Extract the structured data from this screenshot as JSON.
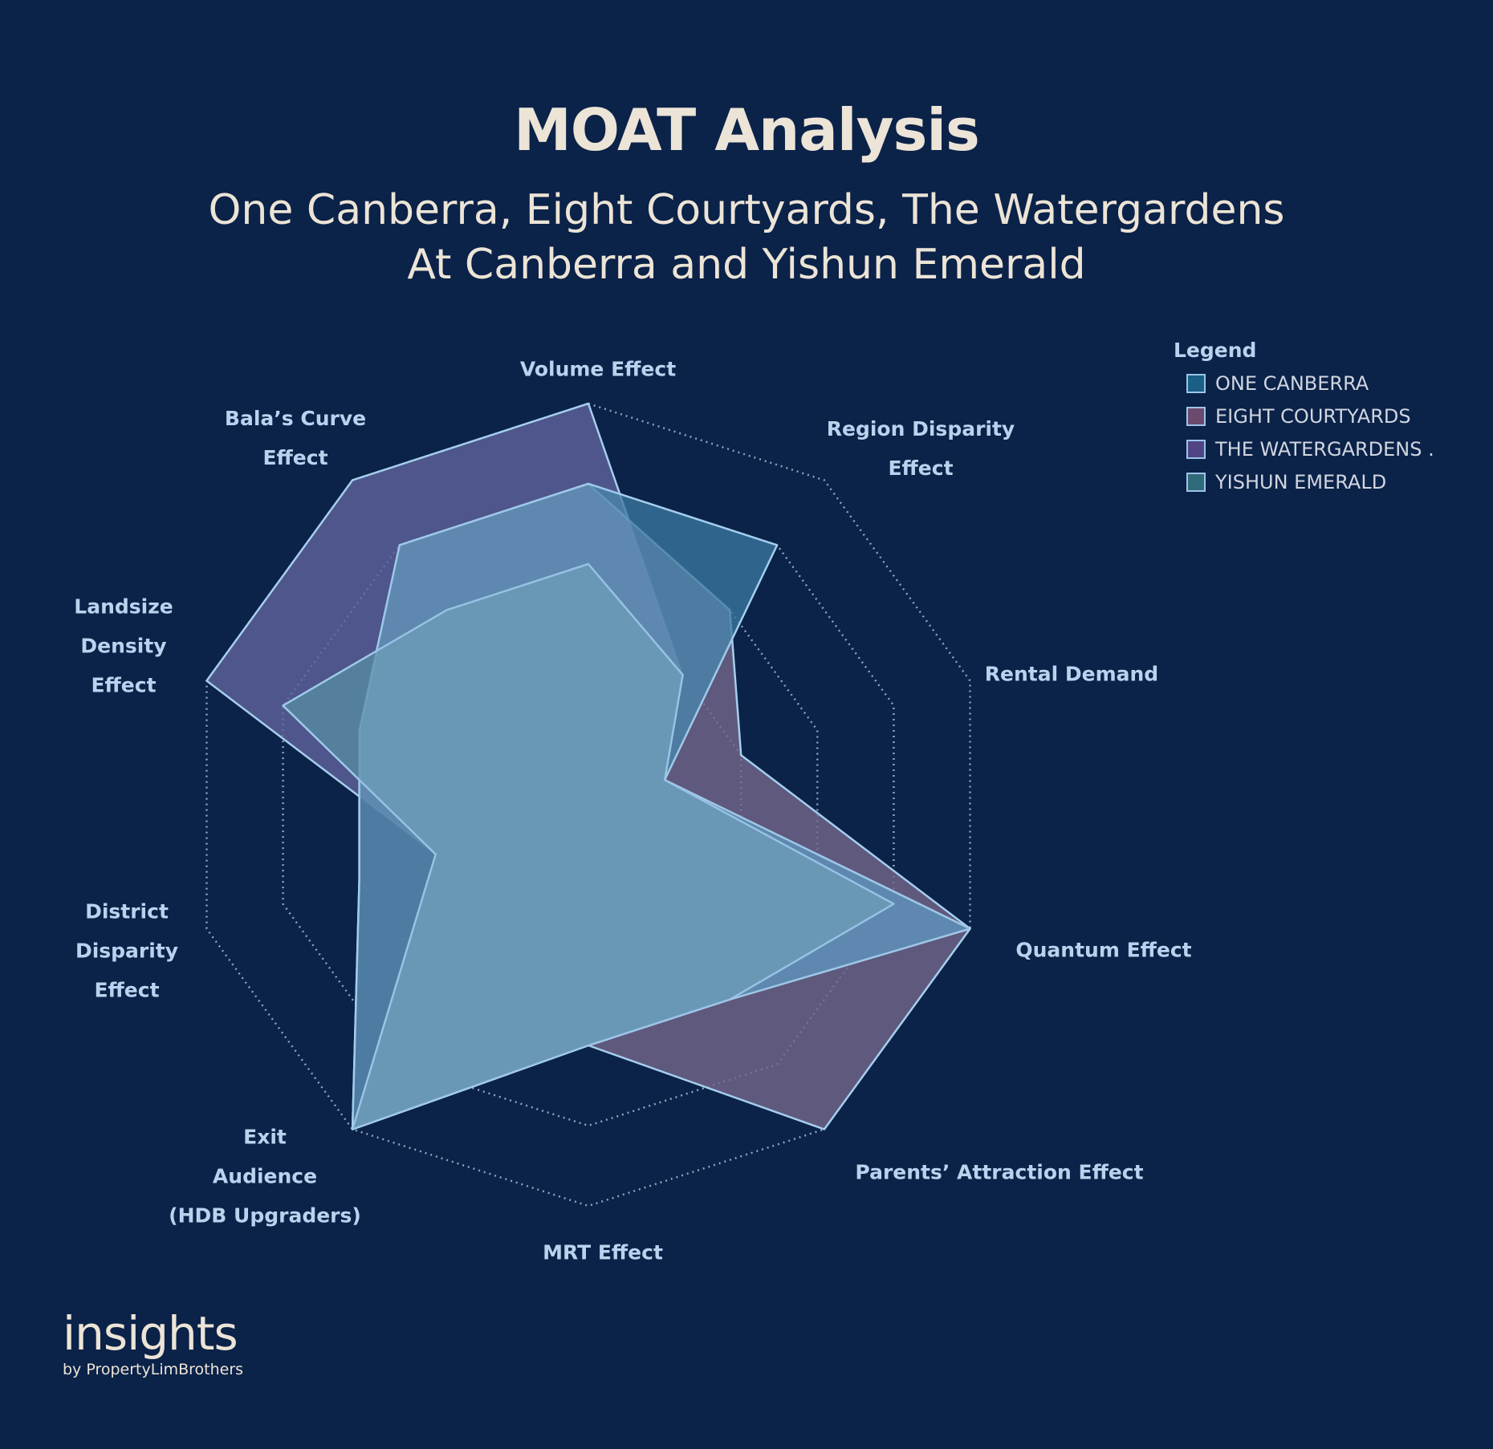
{
  "chart_data": {
    "type": "radar",
    "title": "MOAT Analysis",
    "subtitle_lines": [
      "One Canberra, Eight Courtyards, The Watergardens",
      "At Canberra and Yishun Emerald"
    ],
    "axes": [
      {
        "lines": [
          "Volume Effect"
        ]
      },
      {
        "lines": [
          "Region Disparity",
          "Effect"
        ]
      },
      {
        "lines": [
          "Rental Demand"
        ]
      },
      {
        "lines": [
          "Quantum Effect"
        ]
      },
      {
        "lines": [
          "Parents’ Attraction Effect"
        ]
      },
      {
        "lines": [
          "MRT Effect"
        ]
      },
      {
        "lines": [
          "Exit",
          "Audience",
          "(HDB Upgraders)"
        ]
      },
      {
        "lines": [
          "District",
          "Disparity",
          "Effect"
        ]
      },
      {
        "lines": [
          "Landsize",
          "Density",
          "Effect"
        ]
      },
      {
        "lines": [
          "Bala’s Curve",
          "Effect"
        ]
      }
    ],
    "rlim": [
      0,
      5
    ],
    "rings": 5,
    "grid": true,
    "legend_position": "top-right",
    "legend_title": "Legend",
    "series": [
      {
        "name": "THE WATERGARDENS .",
        "color": "#4f4585",
        "values": [
          5,
          2,
          1,
          5,
          3,
          3,
          5,
          2,
          5,
          5
        ]
      },
      {
        "name": "EIGHT COURTYARDS",
        "color": "#6b4a6e",
        "values": [
          4,
          3,
          2,
          5,
          5,
          3,
          5,
          3,
          3,
          4
        ]
      },
      {
        "name": "ONE CANBERRA",
        "color": "#1a5f85",
        "values": [
          4,
          4,
          1,
          5,
          3,
          3,
          5,
          3,
          3,
          4
        ]
      },
      {
        "name": "YISHUN EMERALD",
        "color": "#2f6a78",
        "values": [
          3,
          2,
          1,
          4,
          3,
          3,
          5,
          2,
          4,
          3
        ]
      }
    ],
    "legend_order": [
      "ONE CANBERRA",
      "EIGHT COURTYARDS",
      "THE WATERGARDENS .",
      "YISHUN EMERALD"
    ]
  },
  "logo": {
    "main": "insights",
    "sub": "by PropertyLimBrothers"
  }
}
